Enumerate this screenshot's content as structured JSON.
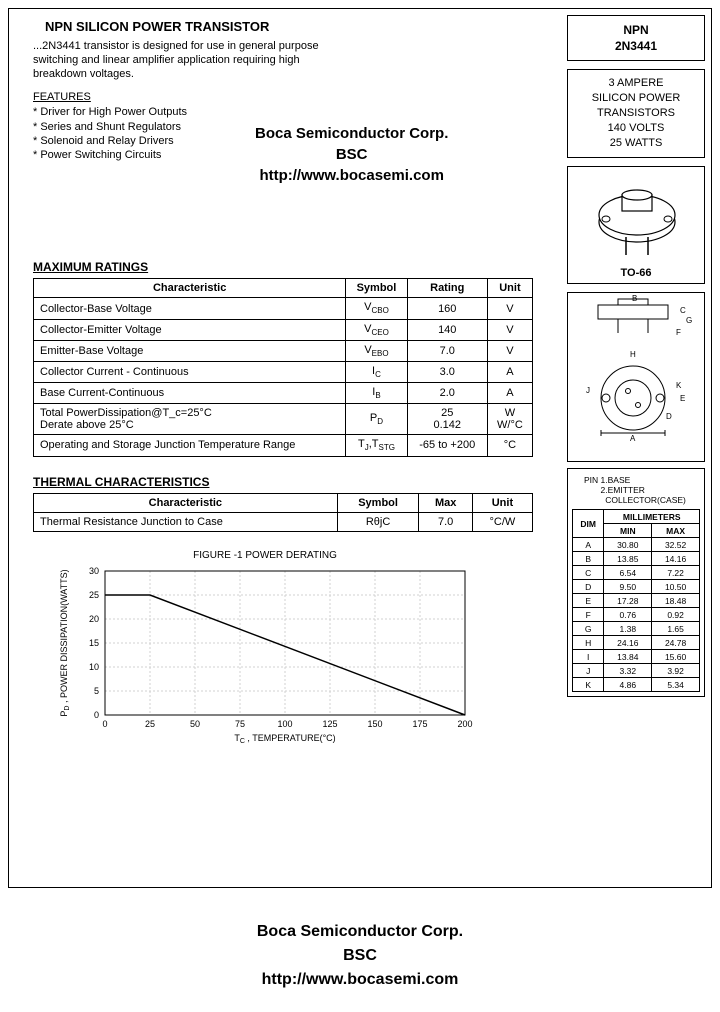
{
  "header": {
    "title": "NPN SILICON POWER TRANSISTOR",
    "intro": "...2N3441 transistor is designed for use in general purpose switching and linear amplifier application requiring high breakdown voltages.",
    "features_label": "FEATURES",
    "features": [
      "* Driver for High Power Outputs",
      "* Series and Shunt Regulators",
      "* Solenoid and Relay Drivers",
      "* Power Switching Circuits"
    ]
  },
  "company": {
    "name": "Boca Semiconductor Corp.",
    "abbr": "BSC",
    "url": "http://www.bocasemi.com"
  },
  "side": {
    "type": "NPN",
    "part": "2N3441",
    "desc_lines": [
      "3 AMPERE",
      "SILICON POWER",
      "TRANSISTORS",
      "140 VOLTS",
      "25 WATTS"
    ],
    "package": "TO-66",
    "pin_note": "PIN 1.BASE\n       2.EMITTER\n         COLLECTOR(CASE)",
    "dim_header": {
      "col0": "DIM",
      "group": "MILLIMETERS",
      "min": "MIN",
      "max": "MAX"
    },
    "dims": [
      {
        "d": "A",
        "min": "30.80",
        "max": "32.52"
      },
      {
        "d": "B",
        "min": "13.85",
        "max": "14.16"
      },
      {
        "d": "C",
        "min": "6.54",
        "max": "7.22"
      },
      {
        "d": "D",
        "min": "9.50",
        "max": "10.50"
      },
      {
        "d": "E",
        "min": "17.28",
        "max": "18.48"
      },
      {
        "d": "F",
        "min": "0.76",
        "max": "0.92"
      },
      {
        "d": "G",
        "min": "1.38",
        "max": "1.65"
      },
      {
        "d": "H",
        "min": "24.16",
        "max": "24.78"
      },
      {
        "d": "I",
        "min": "13.84",
        "max": "15.60"
      },
      {
        "d": "J",
        "min": "3.32",
        "max": "3.92"
      },
      {
        "d": "K",
        "min": "4.86",
        "max": "5.34"
      }
    ]
  },
  "ratings": {
    "title": "MAXIMUM RATINGS",
    "cols": [
      "Characteristic",
      "Symbol",
      "Rating",
      "Unit"
    ],
    "rows": [
      {
        "char": "Collector-Base Voltage",
        "sym": "V_CBO",
        "rat": "160",
        "unit": "V"
      },
      {
        "char": "Collector-Emitter Voltage",
        "sym": "V_CEO",
        "rat": "140",
        "unit": "V"
      },
      {
        "char": "Emitter-Base Voltage",
        "sym": "V_EBO",
        "rat": "7.0",
        "unit": "V"
      },
      {
        "char": "Collector Current - Continuous",
        "sym": "I_C",
        "rat": "3.0",
        "unit": "A"
      },
      {
        "char": "Base Current-Continuous",
        "sym": "I_B",
        "rat": "2.0",
        "unit": "A"
      },
      {
        "char": "Total PowerDissipation@T_c=25°C\n Derate above 25°C",
        "sym": "P_D",
        "rat": "25\n0.142",
        "unit": "W\nW/°C"
      },
      {
        "char": "Operating and Storage Junction Temperature Range",
        "sym": "T_J,T_STG",
        "rat": "-65 to +200",
        "unit": "°C"
      }
    ]
  },
  "thermal": {
    "title": "THERMAL CHARACTERISTICS",
    "cols": [
      "Characteristic",
      "Symbol",
      "Max",
      "Unit"
    ],
    "rows": [
      {
        "char": "Thermal Resistance Junction to Case",
        "sym": "RθjC",
        "max": "7.0",
        "unit": "°C/W"
      }
    ]
  },
  "chart": {
    "title": "FIGURE -1 POWER DERATING",
    "type": "line",
    "xlabel": "T_C , TEMPERATURE(°C)",
    "ylabel": "P_D , POWER DISSIPATION(WATTS)",
    "xlim": [
      0,
      200
    ],
    "ylim": [
      0,
      30
    ],
    "xtick_step": 25,
    "ytick_step": 5,
    "xticks": [
      0,
      25,
      50,
      75,
      100,
      125,
      150,
      175,
      200
    ],
    "yticks": [
      0,
      5,
      10,
      15,
      20,
      25,
      30
    ],
    "line_color": "#000000",
    "grid_color": "#d0d0d0",
    "background_color": "#ffffff",
    "line_width": 1.5,
    "data_points": [
      {
        "x": 0,
        "y": 25
      },
      {
        "x": 25,
        "y": 25
      },
      {
        "x": 200,
        "y": 0
      }
    ],
    "label_fontsize": 9
  },
  "colors": {
    "border": "#000000",
    "text": "#000000",
    "bg": "#ffffff"
  }
}
